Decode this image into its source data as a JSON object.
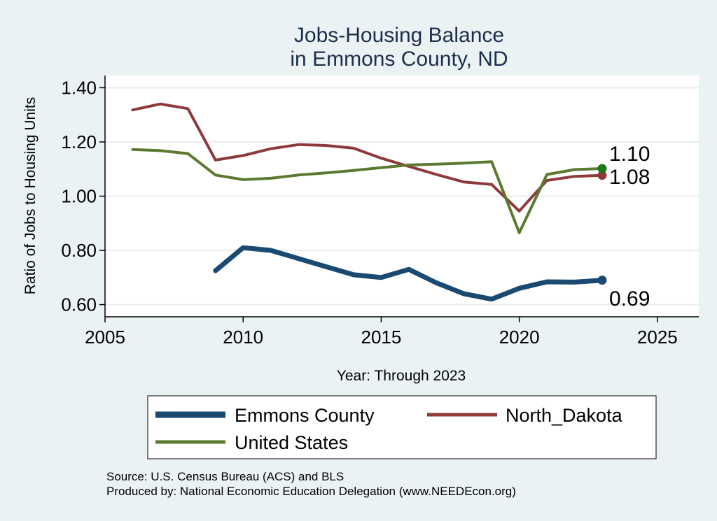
{
  "chart_data": {
    "type": "line",
    "title": [
      "Jobs-Housing Balance",
      "in Emmons County, ND"
    ],
    "xlabel": "Year: Through 2023",
    "ylabel": "Ratio of Jobs to Housing Units",
    "xlim": [
      2005,
      2026.5
    ],
    "ylim": [
      0.555,
      1.445
    ],
    "xticks": [
      2005,
      2010,
      2015,
      2020,
      2025
    ],
    "yticks": [
      0.6,
      0.8,
      1.0,
      1.2,
      1.4
    ],
    "ytick_labels": [
      "0.60",
      "0.80",
      "1.00",
      "1.20",
      "1.40"
    ],
    "grid": "horizontal",
    "series": [
      {
        "name": "Emmons County",
        "color": "#1a4a72",
        "width": 7,
        "x": [
          2009,
          2010,
          2011,
          2012,
          2013,
          2014,
          2015,
          2016,
          2017,
          2018,
          2019,
          2020,
          2021,
          2022,
          2023
        ],
        "values": [
          0.725,
          0.81,
          0.8,
          0.77,
          0.74,
          0.71,
          0.7,
          0.73,
          0.68,
          0.64,
          0.62,
          0.66,
          0.684,
          0.683,
          0.69
        ],
        "end_label": "0.69"
      },
      {
        "name": "North_Dakota",
        "color": "#8f3a3a",
        "width": 4,
        "x": [
          2006,
          2007,
          2008,
          2009,
          2010,
          2011,
          2012,
          2013,
          2014,
          2015,
          2016,
          2017,
          2018,
          2019,
          2020,
          2021,
          2022,
          2023
        ],
        "values": [
          1.318,
          1.34,
          1.323,
          1.133,
          1.15,
          1.175,
          1.19,
          1.187,
          1.177,
          1.14,
          1.11,
          1.08,
          1.052,
          1.043,
          0.945,
          1.058,
          1.073,
          1.077
        ],
        "end_label": "1.08"
      },
      {
        "name": "United States",
        "color": "#5b7a30",
        "width": 4,
        "x": [
          2006,
          2007,
          2008,
          2009,
          2010,
          2011,
          2012,
          2013,
          2014,
          2015,
          2016,
          2017,
          2018,
          2019,
          2020,
          2021,
          2022,
          2023
        ],
        "values": [
          1.172,
          1.168,
          1.157,
          1.078,
          1.061,
          1.066,
          1.078,
          1.086,
          1.095,
          1.105,
          1.115,
          1.118,
          1.122,
          1.127,
          0.865,
          1.08,
          1.098,
          1.102
        ],
        "end_label": "1.10",
        "end_marker_color": "#1a7a1a"
      }
    ],
    "legend": [
      {
        "name": "Emmons County",
        "color": "#1a4a72",
        "width": 9
      },
      {
        "name": "North_Dakota",
        "color": "#8f3a3a",
        "width": 5
      },
      {
        "name": "United States",
        "color": "#5b7a30",
        "width": 5
      }
    ],
    "source_lines": [
      "Source: U.S. Census Bureau (ACS) and BLS",
      "Produced by: National Economic Education Delegation (www.NEEDEcon.org)"
    ]
  }
}
